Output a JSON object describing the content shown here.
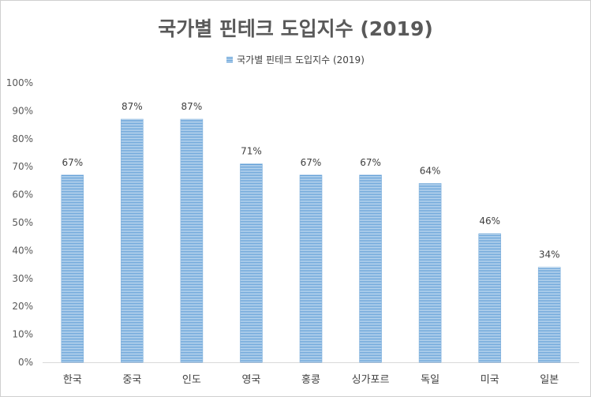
{
  "chart_data": {
    "type": "bar",
    "title": "국가별 핀테크 도입지수 (2019)",
    "categories": [
      "한국",
      "중국",
      "인도",
      "영국",
      "홍콩",
      "싱가포르",
      "독일",
      "미국",
      "일본"
    ],
    "series": [
      {
        "name": "국가별 핀테크 도입지수 (2019)",
        "values": [
          67,
          87,
          87,
          71,
          67,
          67,
          64,
          46,
          34
        ]
      }
    ],
    "data_labels": [
      "67%",
      "87%",
      "87%",
      "71%",
      "67%",
      "67%",
      "64%",
      "46%",
      "34%"
    ],
    "y_tick_labels": [
      "0%",
      "10%",
      "20%",
      "30%",
      "40%",
      "50%",
      "60%",
      "70%",
      "80%",
      "90%",
      "100%"
    ],
    "ylim": [
      0,
      100
    ],
    "grid": false,
    "legend_position": "top",
    "bar_color": "#5b9bd5",
    "bar_stripe_color": "#cfe2f3"
  }
}
